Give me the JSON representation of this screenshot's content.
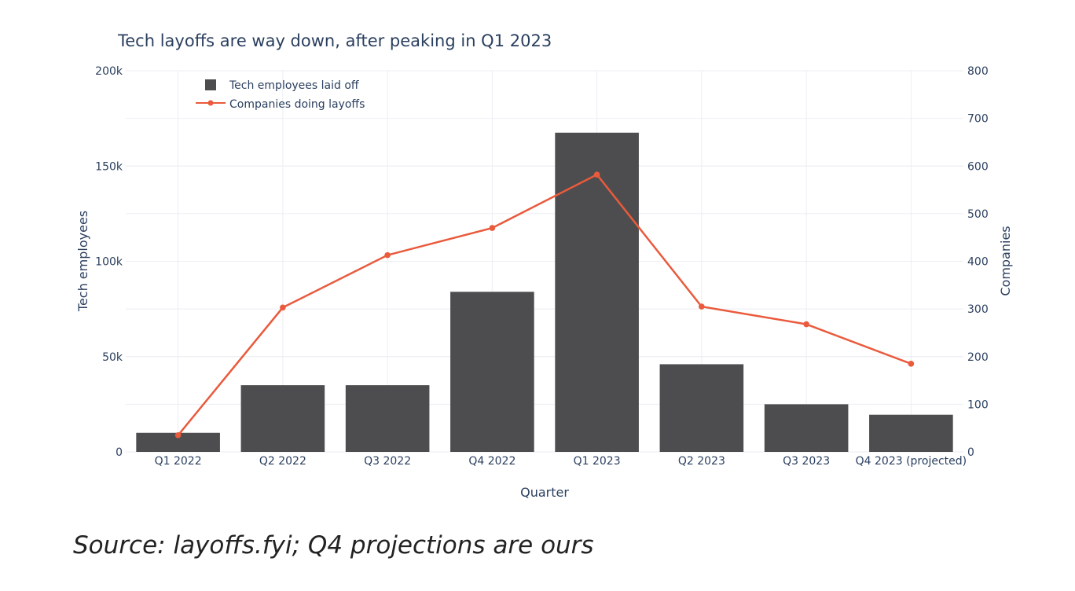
{
  "source_note": "Source: layoffs.fyi; Q4 projections are ours",
  "colors": {
    "bar": "#4d4d4f",
    "line": "#ea5a3c",
    "grid": "#ebeef3",
    "text": "#2a3f5f"
  },
  "chart_data": {
    "type": "bar",
    "title": "Tech layoffs are way down, after peaking in Q1 2023",
    "xlabel": "Quarter",
    "ylabel": "Tech employees",
    "y2label": "Companies",
    "categories": [
      "Q1 2022",
      "Q2 2022",
      "Q3 2022",
      "Q4 2022",
      "Q1 2023",
      "Q2 2023",
      "Q3 2023",
      "Q4 2023 (projected)"
    ],
    "ylim": [
      0,
      200000
    ],
    "y2lim": [
      0,
      800
    ],
    "yticks": [
      0,
      50000,
      100000,
      150000,
      200000
    ],
    "ytick_labels": [
      "0",
      "50k",
      "100k",
      "150k",
      "200k"
    ],
    "y2ticks": [
      0,
      100,
      200,
      300,
      400,
      500,
      600,
      700,
      800
    ],
    "y2tick_labels": [
      "0",
      "100",
      "200",
      "300",
      "400",
      "500",
      "600",
      "700",
      "800"
    ],
    "grid": true,
    "legend_position": "top-left",
    "series": [
      {
        "name": "Tech employees laid off",
        "type": "bar",
        "axis": "left",
        "values": [
          10000,
          35000,
          35000,
          84000,
          167500,
          46000,
          25000,
          19500
        ]
      },
      {
        "name": "Companies doing layoffs",
        "type": "line",
        "axis": "right",
        "values": [
          35,
          303,
          413,
          470,
          582,
          305,
          268,
          185
        ]
      }
    ]
  }
}
